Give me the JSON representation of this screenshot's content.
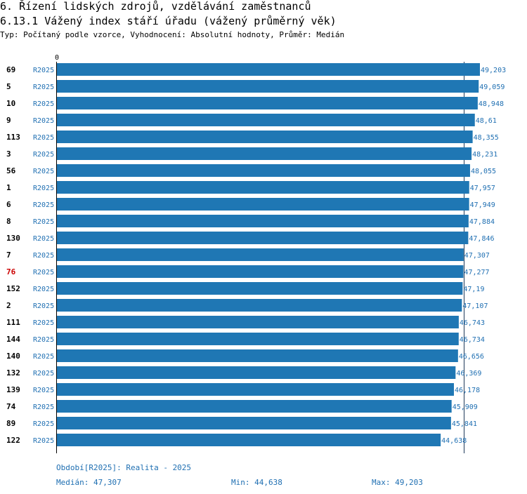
{
  "header": {
    "title1": "6. Řízení lidských zdrojů, vzdělávání zaměstnanců",
    "title2": "6.13.1 Vážený index stáří úřadu (vážený průměrný věk)",
    "subtitle": "Typ: Počítaný podle vzorce, Vyhodnocení: Absolutní hodnoty, Průměr: Medián"
  },
  "colors": {
    "bar": "#1f77b4",
    "label": "#1f6fb2",
    "highlight": "#cc0000"
  },
  "chart_data": {
    "type": "bar",
    "orientation": "horizontal",
    "axis_zero_label": "0",
    "xlim": [
      0,
      49.203
    ],
    "median": 47.307,
    "highlight_id": "76",
    "rows": [
      {
        "id": "69",
        "series": "R2025",
        "value": 49.203,
        "label": "49,203"
      },
      {
        "id": "5",
        "series": "R2025",
        "value": 49.059,
        "label": "49,059"
      },
      {
        "id": "10",
        "series": "R2025",
        "value": 48.948,
        "label": "48,948"
      },
      {
        "id": "9",
        "series": "R2025",
        "value": 48.61,
        "label": "48,61"
      },
      {
        "id": "113",
        "series": "R2025",
        "value": 48.355,
        "label": "48,355"
      },
      {
        "id": "3",
        "series": "R2025",
        "value": 48.231,
        "label": "48,231"
      },
      {
        "id": "56",
        "series": "R2025",
        "value": 48.055,
        "label": "48,055"
      },
      {
        "id": "1",
        "series": "R2025",
        "value": 47.957,
        "label": "47,957"
      },
      {
        "id": "6",
        "series": "R2025",
        "value": 47.949,
        "label": "47,949"
      },
      {
        "id": "8",
        "series": "R2025",
        "value": 47.884,
        "label": "47,884"
      },
      {
        "id": "130",
        "series": "R2025",
        "value": 47.846,
        "label": "47,846"
      },
      {
        "id": "7",
        "series": "R2025",
        "value": 47.307,
        "label": "47,307"
      },
      {
        "id": "76",
        "series": "R2025",
        "value": 47.277,
        "label": "47,277"
      },
      {
        "id": "152",
        "series": "R2025",
        "value": 47.19,
        "label": "47,19"
      },
      {
        "id": "2",
        "series": "R2025",
        "value": 47.107,
        "label": "47,107"
      },
      {
        "id": "111",
        "series": "R2025",
        "value": 46.743,
        "label": "46,743"
      },
      {
        "id": "144",
        "series": "R2025",
        "value": 46.734,
        "label": "46,734"
      },
      {
        "id": "140",
        "series": "R2025",
        "value": 46.656,
        "label": "46,656"
      },
      {
        "id": "132",
        "series": "R2025",
        "value": 46.369,
        "label": "46,369"
      },
      {
        "id": "139",
        "series": "R2025",
        "value": 46.178,
        "label": "46,178"
      },
      {
        "id": "74",
        "series": "R2025",
        "value": 45.909,
        "label": "45,909"
      },
      {
        "id": "89",
        "series": "R2025",
        "value": 45.841,
        "label": "45,841"
      },
      {
        "id": "122",
        "series": "R2025",
        "value": 44.638,
        "label": "44,638"
      }
    ]
  },
  "footer": {
    "period": "Období[R2025]: Realita - 2025",
    "median": "Medián: 47,307",
    "min": "Min: 44,638",
    "max": "Max: 49,203"
  }
}
